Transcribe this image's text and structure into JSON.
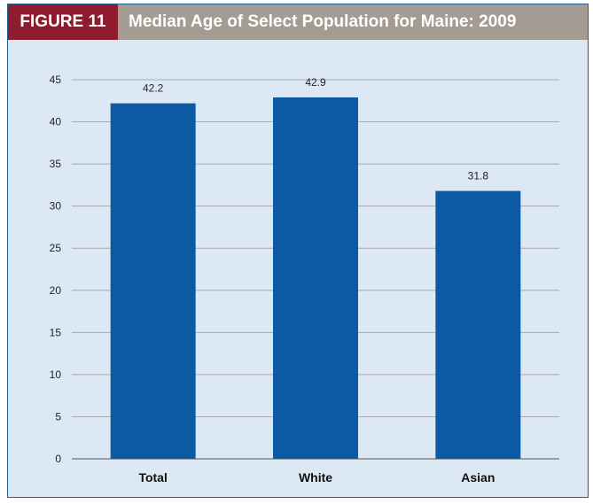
{
  "header": {
    "figure_label": "FIGURE 11",
    "title": "Median Age of Select Population for Maine: 2009"
  },
  "colors": {
    "bar": "#0b5aa2",
    "header_label_bg": "#8e1b2e",
    "header_title_bg": "#a49b92",
    "plot_bg": "#dce9f5"
  },
  "chart_data": {
    "type": "bar",
    "title": "Median Age of Select Population for Maine: 2009",
    "categories": [
      "Total",
      "White",
      "Asian"
    ],
    "values": [
      42.2,
      42.9,
      31.8
    ],
    "data_labels": [
      "42.2",
      "42.9",
      "31.8"
    ],
    "xlabel": "",
    "ylabel": "",
    "ylim": [
      0,
      45
    ],
    "yticks": [
      0,
      5,
      10,
      15,
      20,
      25,
      30,
      35,
      40,
      45
    ],
    "grid": true,
    "legend": "none"
  }
}
